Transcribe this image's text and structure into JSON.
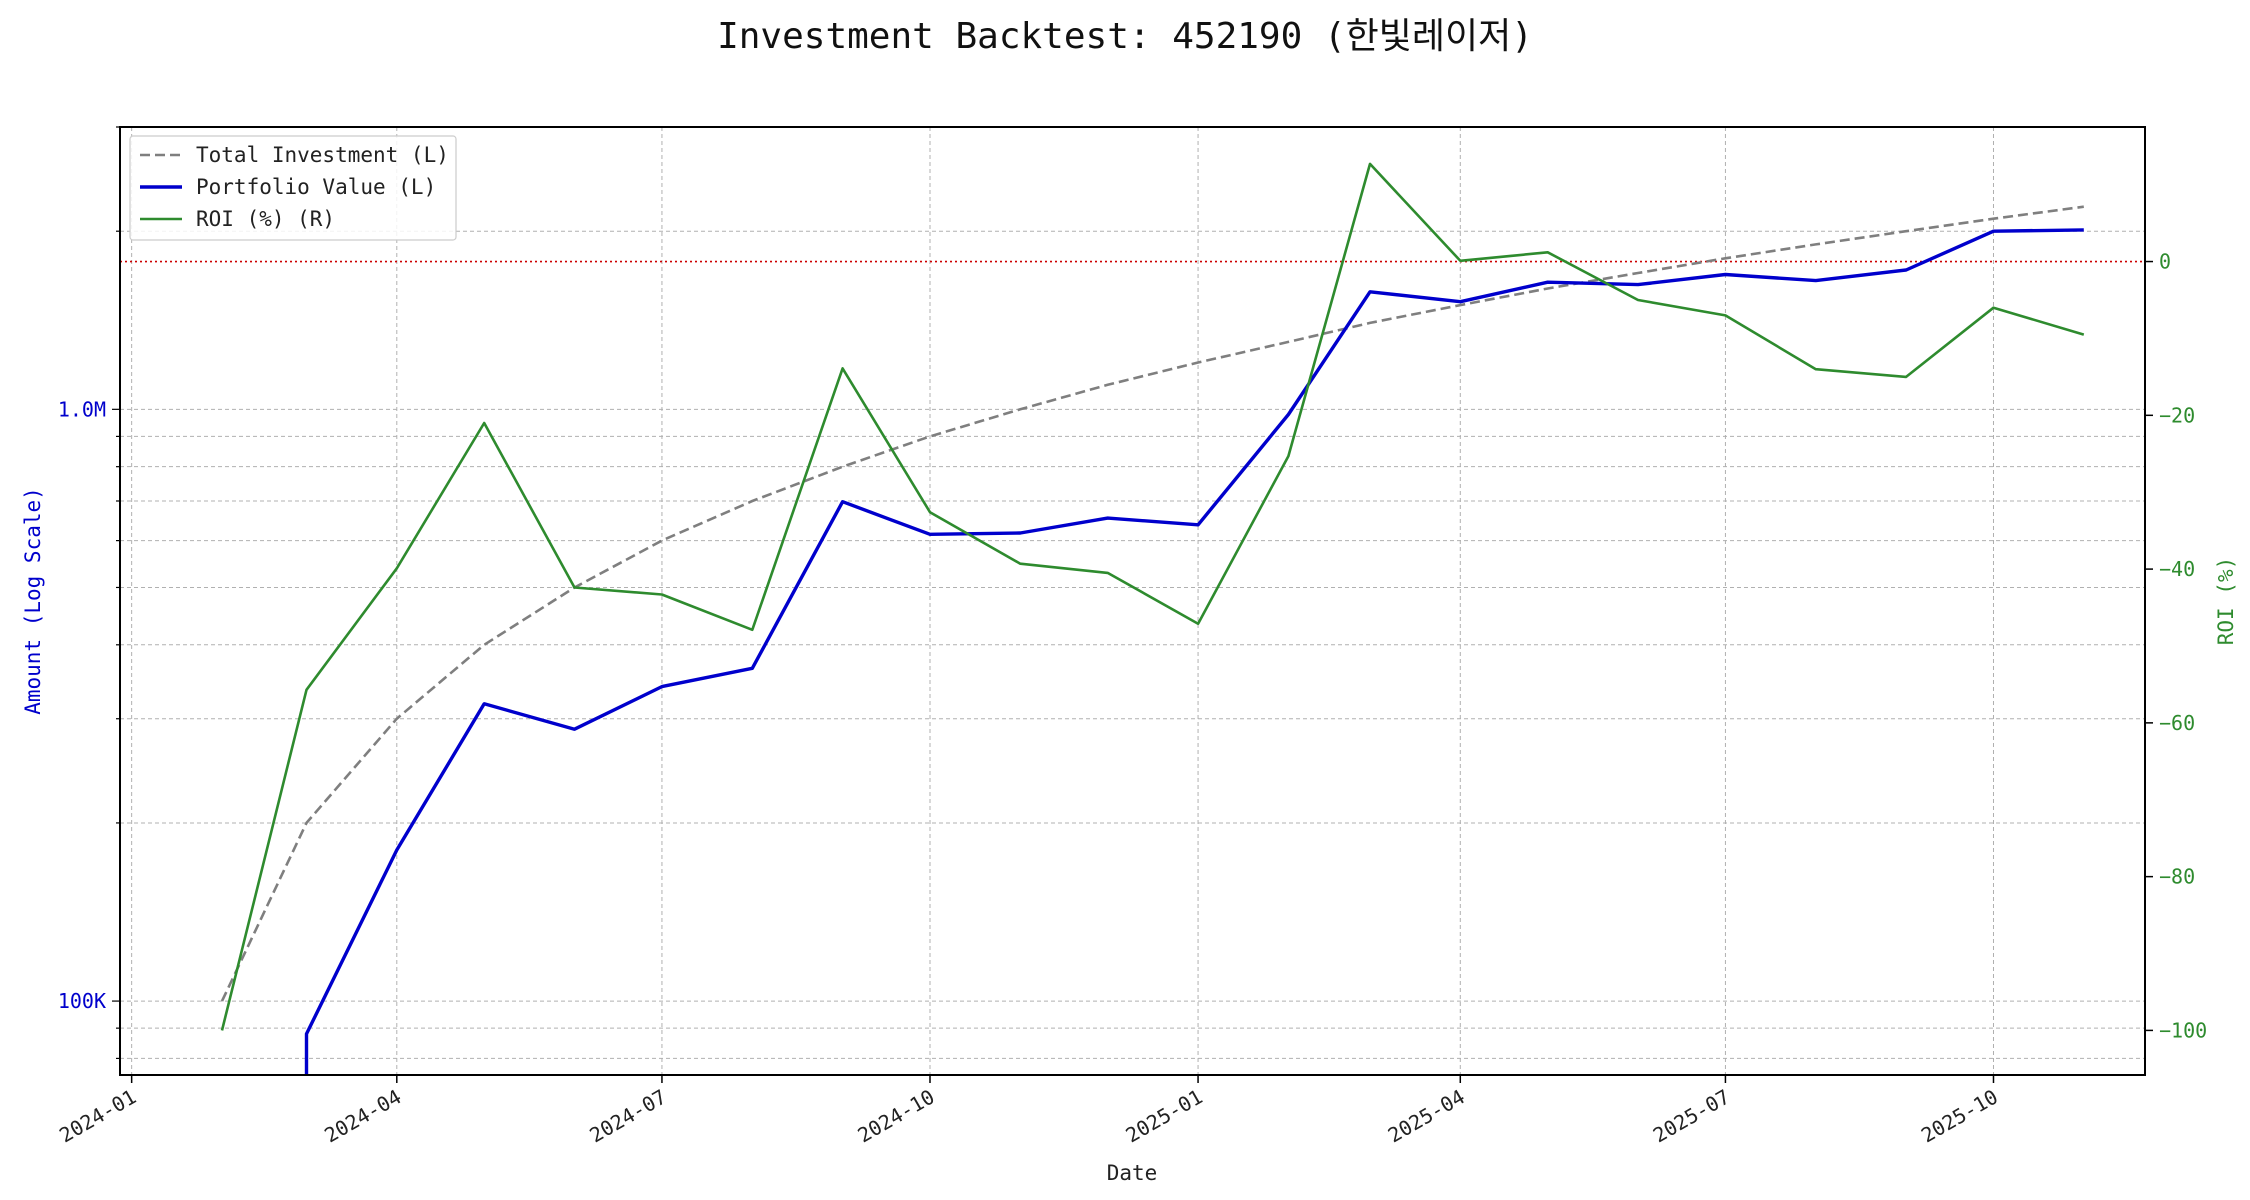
{
  "chart_data": {
    "type": "line",
    "title": "Investment Backtest: 452190 (한빛레이저)",
    "xlabel": "Date",
    "ylabel_left": "Amount (Log Scale)",
    "ylabel_right": "ROI (%)",
    "left_scale": "log",
    "left_ylim": [
      75000,
      3000000
    ],
    "right_ylim": [
      -105.8,
      17.5
    ],
    "xlim": [
      "2023-12-28",
      "2025-11-22"
    ],
    "grid": true,
    "legend_position": "top-left",
    "x_ticks": [
      "2024-01",
      "2024-04",
      "2024-07",
      "2024-10",
      "2025-01",
      "2025-04",
      "2025-07",
      "2025-10"
    ],
    "x_tick_dates": [
      "2024-01-01",
      "2024-04-01",
      "2024-07-01",
      "2024-10-01",
      "2025-01-01",
      "2025-04-01",
      "2025-07-01",
      "2025-10-01"
    ],
    "left_ticks": [
      {
        "label": "100K",
        "value": 100000
      },
      {
        "label": "1.0M",
        "value": 1000000
      }
    ],
    "right_ticks": [
      {
        "label": "0",
        "value": 0
      },
      {
        "label": "−20",
        "value": -20
      },
      {
        "label": "−40",
        "value": -40
      },
      {
        "label": "−60",
        "value": -60
      },
      {
        "label": "−80",
        "value": -80
      },
      {
        "label": "−100",
        "value": -100
      }
    ],
    "zero_line": 0,
    "x": [
      "2024-02-01",
      "2024-03-01",
      "2024-04-01",
      "2024-05-01",
      "2024-06-01",
      "2024-07-01",
      "2024-08-01",
      "2024-09-01",
      "2024-10-01",
      "2024-11-01",
      "2024-12-01",
      "2025-01-01",
      "2025-02-01",
      "2025-03-01",
      "2025-04-01",
      "2025-05-01",
      "2025-06-01",
      "2025-07-01",
      "2025-08-01",
      "2025-09-01",
      "2025-10-01",
      "2025-11-01"
    ],
    "series": [
      {
        "name": "Total Investment (L)",
        "axis": "left",
        "color": "#7f7f7f",
        "style": "dashed",
        "values": [
          100000,
          200000,
          300000,
          400000,
          500000,
          600000,
          700000,
          800000,
          900000,
          1000000,
          1100000,
          1200000,
          1300000,
          1400000,
          1500000,
          1600000,
          1700000,
          1800000,
          1900000,
          2000000,
          2100000,
          2200000
        ]
      },
      {
        "name": "Portfolio Value (L)",
        "axis": "left",
        "color": "#0000cc",
        "style": "solid",
        "values": [
          null,
          88000,
          180000,
          318000,
          288000,
          340000,
          365000,
          698000,
          615000,
          618000,
          655000,
          638000,
          980000,
          1580000,
          1520000,
          1640000,
          1625000,
          1690000,
          1650000,
          1720000,
          2000000,
          2010000
        ]
      },
      {
        "name": "ROI (%) (R)",
        "axis": "right",
        "color": "#2e8b2e",
        "style": "solid",
        "values": [
          -100,
          -55.7,
          -39.9,
          -21,
          -42.4,
          -43.3,
          -47.9,
          -13.9,
          -32.6,
          -39.3,
          -40.5,
          -47.1,
          -25.3,
          12.7,
          0.1,
          1.2,
          -5,
          -7,
          -14,
          -15,
          -6,
          -9.5
        ]
      }
    ]
  }
}
